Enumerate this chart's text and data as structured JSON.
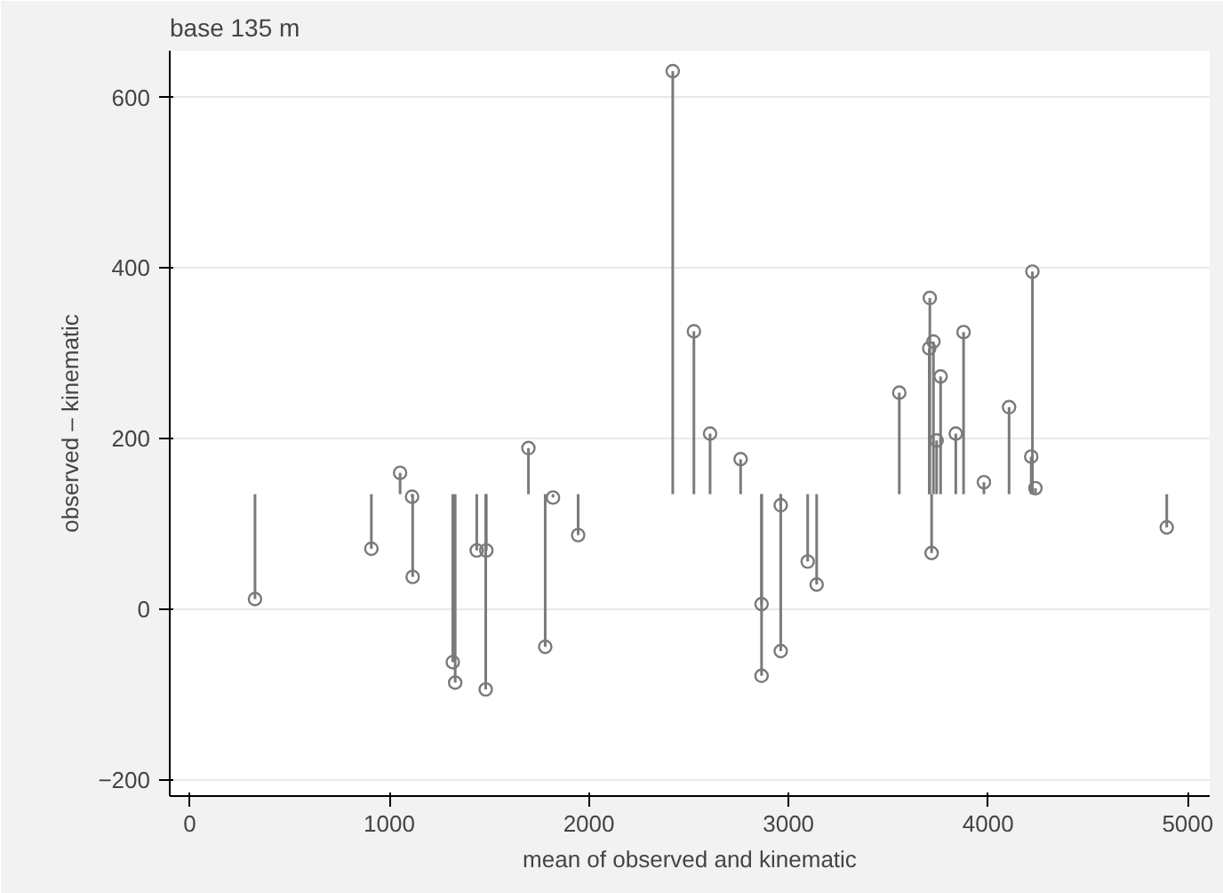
{
  "chart_data": {
    "type": "scatter",
    "title": "base 135 m",
    "xlabel": "mean of observed and kinematic",
    "ylabel": "observed – kinematic",
    "x": [
      327,
      910,
      1054,
      1114,
      1117,
      1318,
      1330,
      1438,
      1486,
      1483,
      1697,
      1781,
      1820,
      1946,
      2420,
      2526,
      2607,
      2760,
      2865,
      2865,
      2961,
      2961,
      3096,
      3141,
      3555,
      3708,
      3705,
      3726,
      3717,
      3762,
      3742,
      3838,
      3877,
      3979,
      4105,
      4222,
      4216,
      4237,
      4895
    ],
    "values": [
      12,
      71,
      160,
      132,
      38,
      -62,
      -86,
      69,
      69,
      -94,
      189,
      -44,
      131,
      87,
      631,
      326,
      206,
      176,
      6,
      -78,
      122,
      -49,
      56,
      29,
      254,
      365,
      306,
      314,
      66,
      273,
      198,
      206,
      325,
      149,
      237,
      396,
      179,
      142,
      96
    ],
    "errors": [
      [
        12,
        135
      ],
      [
        71,
        135
      ],
      [
        135,
        160
      ],
      [
        132,
        135
      ],
      [
        38,
        135
      ],
      [
        -62,
        135
      ],
      [
        -86,
        135
      ],
      [
        69,
        135
      ],
      [
        69,
        135
      ],
      [
        -94,
        135
      ],
      [
        135,
        189
      ],
      [
        -44,
        135
      ],
      [
        131,
        135
      ],
      [
        87,
        135
      ],
      [
        135,
        631
      ],
      [
        135,
        326
      ],
      [
        135,
        206
      ],
      [
        135,
        176
      ],
      [
        6,
        135
      ],
      [
        -78,
        135
      ],
      [
        122,
        135
      ],
      [
        -49,
        135
      ],
      [
        56,
        135
      ],
      [
        29,
        135
      ],
      [
        135,
        254
      ],
      [
        135,
        365
      ],
      [
        135,
        306
      ],
      [
        135,
        314
      ],
      [
        66,
        135
      ],
      [
        135,
        273
      ],
      [
        135,
        198
      ],
      [
        135,
        206
      ],
      [
        135,
        325
      ],
      [
        135,
        149
      ],
      [
        135,
        237
      ],
      [
        135,
        396
      ],
      [
        135,
        179
      ],
      [
        135,
        142
      ],
      [
        96,
        135
      ]
    ],
    "color": "#7a7a7a",
    "marker": "circle",
    "xlim": [
      -100,
      5110
    ],
    "ylim": [
      -219,
      655
    ],
    "xticks": [
      0,
      1000,
      2000,
      3000,
      4000,
      5000
    ],
    "yticks": [
      -200,
      0,
      200,
      400,
      600
    ],
    "grid": "y"
  }
}
